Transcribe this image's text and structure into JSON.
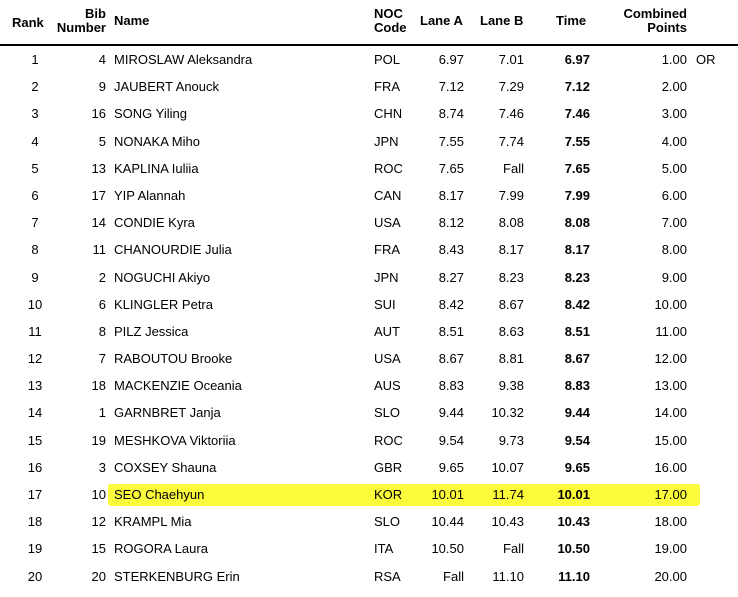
{
  "header": {
    "rank": "Rank",
    "bib_line1": "Bib",
    "bib_line2": "Number",
    "name": "Name",
    "noc_line1": "NOC",
    "noc_line2": "Code",
    "lane_a": "Lane A",
    "lane_b": "Lane B",
    "time": "Time",
    "points_line1": "Combined",
    "points_line2": "Points"
  },
  "highlight_color": "#fbfb3c",
  "highlighted_rank": "17",
  "rows": [
    {
      "rank": "1",
      "bib": "4",
      "name": "MIROSLAW Aleksandra",
      "noc": "POL",
      "lane_a": "6.97",
      "lane_b": "7.01",
      "time": "6.97",
      "points": "1.00",
      "record": "OR"
    },
    {
      "rank": "2",
      "bib": "9",
      "name": "JAUBERT Anouck",
      "noc": "FRA",
      "lane_a": "7.12",
      "lane_b": "7.29",
      "time": "7.12",
      "points": "2.00",
      "record": ""
    },
    {
      "rank": "3",
      "bib": "16",
      "name": "SONG Yiling",
      "noc": "CHN",
      "lane_a": "8.74",
      "lane_b": "7.46",
      "time": "7.46",
      "points": "3.00",
      "record": ""
    },
    {
      "rank": "4",
      "bib": "5",
      "name": "NONAKA Miho",
      "noc": "JPN",
      "lane_a": "7.55",
      "lane_b": "7.74",
      "time": "7.55",
      "points": "4.00",
      "record": ""
    },
    {
      "rank": "5",
      "bib": "13",
      "name": "KAPLINA Iuliia",
      "noc": "ROC",
      "lane_a": "7.65",
      "lane_b": "Fall",
      "time": "7.65",
      "points": "5.00",
      "record": ""
    },
    {
      "rank": "6",
      "bib": "17",
      "name": "YIP Alannah",
      "noc": "CAN",
      "lane_a": "8.17",
      "lane_b": "7.99",
      "time": "7.99",
      "points": "6.00",
      "record": ""
    },
    {
      "rank": "7",
      "bib": "14",
      "name": "CONDIE Kyra",
      "noc": "USA",
      "lane_a": "8.12",
      "lane_b": "8.08",
      "time": "8.08",
      "points": "7.00",
      "record": ""
    },
    {
      "rank": "8",
      "bib": "11",
      "name": "CHANOURDIE Julia",
      "noc": "FRA",
      "lane_a": "8.43",
      "lane_b": "8.17",
      "time": "8.17",
      "points": "8.00",
      "record": ""
    },
    {
      "rank": "9",
      "bib": "2",
      "name": "NOGUCHI Akiyo",
      "noc": "JPN",
      "lane_a": "8.27",
      "lane_b": "8.23",
      "time": "8.23",
      "points": "9.00",
      "record": ""
    },
    {
      "rank": "10",
      "bib": "6",
      "name": "KLINGLER Petra",
      "noc": "SUI",
      "lane_a": "8.42",
      "lane_b": "8.67",
      "time": "8.42",
      "points": "10.00",
      "record": ""
    },
    {
      "rank": "11",
      "bib": "8",
      "name": "PILZ Jessica",
      "noc": "AUT",
      "lane_a": "8.51",
      "lane_b": "8.63",
      "time": "8.51",
      "points": "11.00",
      "record": ""
    },
    {
      "rank": "12",
      "bib": "7",
      "name": "RABOUTOU Brooke",
      "noc": "USA",
      "lane_a": "8.67",
      "lane_b": "8.81",
      "time": "8.67",
      "points": "12.00",
      "record": ""
    },
    {
      "rank": "13",
      "bib": "18",
      "name": "MACKENZIE Oceania",
      "noc": "AUS",
      "lane_a": "8.83",
      "lane_b": "9.38",
      "time": "8.83",
      "points": "13.00",
      "record": ""
    },
    {
      "rank": "14",
      "bib": "1",
      "name": "GARNBRET Janja",
      "noc": "SLO",
      "lane_a": "9.44",
      "lane_b": "10.32",
      "time": "9.44",
      "points": "14.00",
      "record": ""
    },
    {
      "rank": "15",
      "bib": "19",
      "name": "MESHKOVA Viktoriia",
      "noc": "ROC",
      "lane_a": "9.54",
      "lane_b": "9.73",
      "time": "9.54",
      "points": "15.00",
      "record": ""
    },
    {
      "rank": "16",
      "bib": "3",
      "name": "COXSEY Shauna",
      "noc": "GBR",
      "lane_a": "9.65",
      "lane_b": "10.07",
      "time": "9.65",
      "points": "16.00",
      "record": ""
    },
    {
      "rank": "17",
      "bib": "10",
      "name": "SEO Chaehyun",
      "noc": "KOR",
      "lane_a": "10.01",
      "lane_b": "11.74",
      "time": "10.01",
      "points": "17.00",
      "record": ""
    },
    {
      "rank": "18",
      "bib": "12",
      "name": "KRAMPL Mia",
      "noc": "SLO",
      "lane_a": "10.44",
      "lane_b": "10.43",
      "time": "10.43",
      "points": "18.00",
      "record": ""
    },
    {
      "rank": "19",
      "bib": "15",
      "name": "ROGORA Laura",
      "noc": "ITA",
      "lane_a": "10.50",
      "lane_b": "Fall",
      "time": "10.50",
      "points": "19.00",
      "record": ""
    },
    {
      "rank": "20",
      "bib": "20",
      "name": "STERKENBURG Erin",
      "noc": "RSA",
      "lane_a": "Fall",
      "lane_b": "11.10",
      "time": "11.10",
      "points": "20.00",
      "record": ""
    }
  ]
}
